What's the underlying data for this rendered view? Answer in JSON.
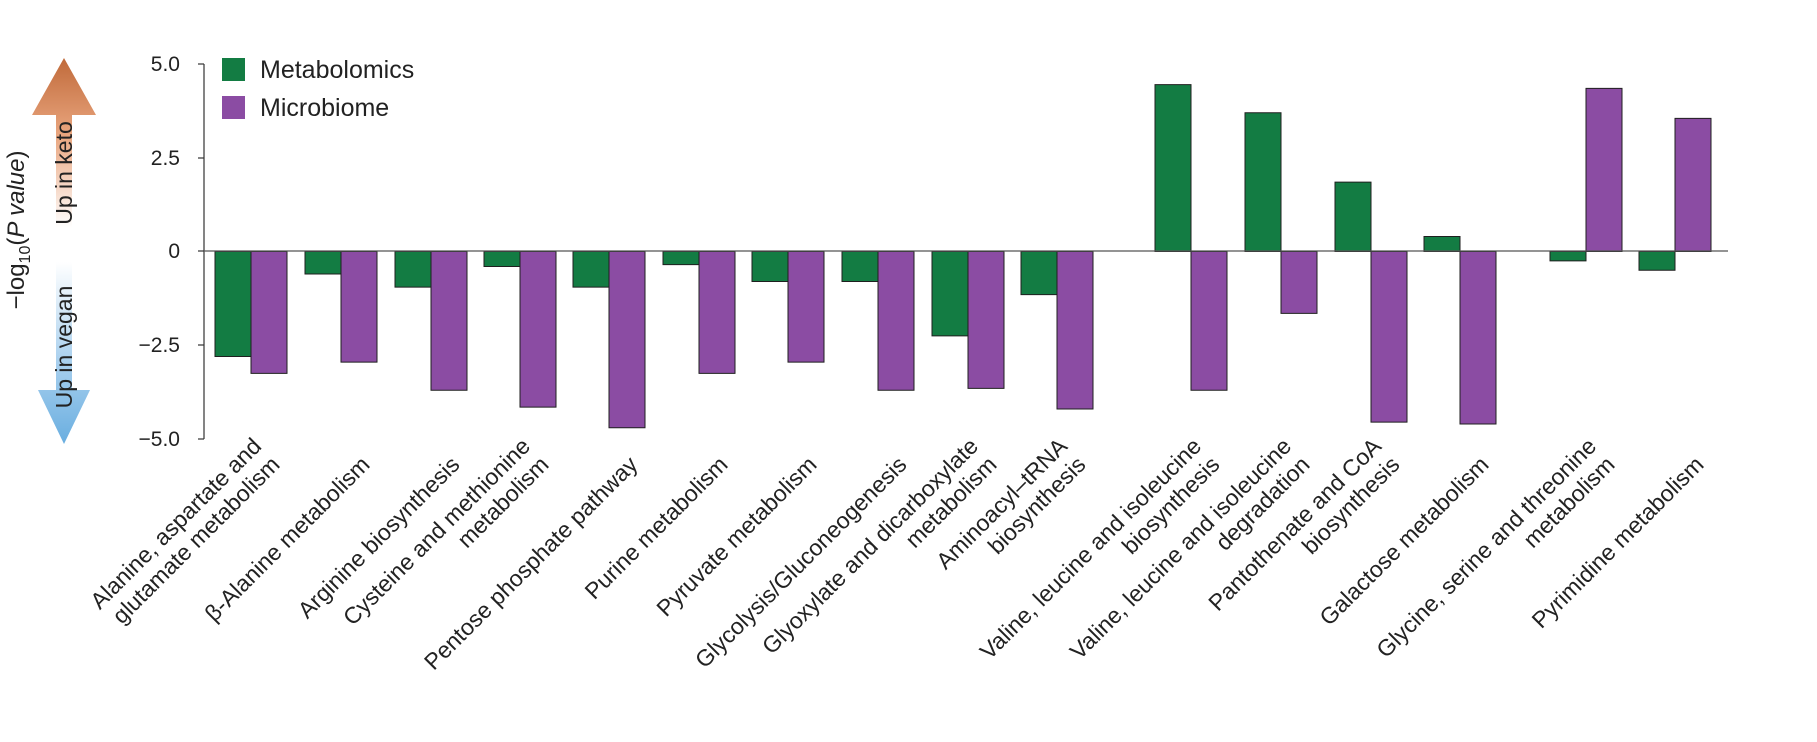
{
  "chart_data": {
    "type": "bar",
    "ylabel": {
      "prefix": "−log",
      "subscript": "10",
      "open": "(",
      "italic": "P value",
      "close": ")"
    },
    "direction_labels": {
      "up": "Up in keto",
      "down": "Up in vegan"
    },
    "ylim": [
      -5.0,
      5.0
    ],
    "yticks": [
      5.0,
      2.5,
      0,
      -2.5,
      -5.0
    ],
    "ytick_labels": [
      "5.0",
      "2.5",
      "0",
      "−2.5",
      "−5.0"
    ],
    "legend_position": "top-left",
    "categories": [
      [
        "Alanine, aspartate and",
        "glutamate metabolism"
      ],
      [
        "β-Alanine metabolism"
      ],
      [
        "Arginine biosynthesis"
      ],
      [
        "Cysteine and methionine",
        "metabolism"
      ],
      [
        "Pentose phosphate pathway"
      ],
      [
        "Purine metabolism"
      ],
      [
        "Pyruvate metabolism"
      ],
      [
        "Glycolysis/Gluconeogenesis"
      ],
      [
        "Glyoxylate and dicarboxylate",
        "metabolism"
      ],
      [
        "Aminoacyl–tRNA",
        "biosynthesis"
      ],
      [
        "Valine, leucine and isoleucine",
        "biosynthesis"
      ],
      [
        "Valine, leucine and isoleucine",
        "degradation"
      ],
      [
        "Pantothenate and CoA",
        "biosynthesis"
      ],
      [
        "Galactose metabolism"
      ],
      [
        "Glycine, serine and threonine",
        "metabolism"
      ],
      [
        "Pyrimidine metabolism"
      ]
    ],
    "series": [
      {
        "name": "Metabolomics",
        "color": "#137c43",
        "values": [
          -2.8,
          -0.6,
          -0.95,
          -0.4,
          -0.95,
          -0.35,
          -0.8,
          -0.8,
          -2.25,
          -1.15,
          4.45,
          3.7,
          1.85,
          0.4,
          -0.25,
          -0.5
        ]
      },
      {
        "name": "Microbiome",
        "color": "#8b4ca3",
        "values": [
          -3.25,
          -2.95,
          -3.7,
          -4.15,
          -4.7,
          -3.25,
          -2.95,
          -3.7,
          -3.65,
          -4.2,
          -3.7,
          -1.65,
          -4.55,
          -4.6,
          4.35,
          3.55
        ]
      }
    ]
  }
}
